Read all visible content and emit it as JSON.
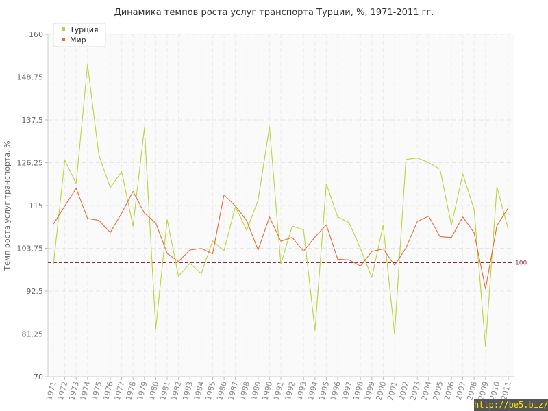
{
  "chart_data": {
    "type": "line",
    "title": "Динамика темпов роста услуг транспорта Турции, %, 1971-2011 гг.",
    "ylabel": "Темп роста услуг транспорта, %",
    "xlabel": "",
    "ylim": [
      70,
      160
    ],
    "yticks": [
      "70",
      "81.25",
      "92.5",
      "103.75",
      "115",
      "126.25",
      "137.5",
      "148.75",
      "160"
    ],
    "ytick_values": [
      70,
      81.25,
      92.5,
      103.75,
      115,
      126.25,
      137.5,
      148.75,
      160
    ],
    "x": [
      "1971",
      "1972",
      "1973",
      "1974",
      "1975",
      "1976",
      "1977",
      "1978",
      "1979",
      "1980",
      "1981",
      "1982",
      "1983",
      "1984",
      "1985",
      "1986",
      "1987",
      "1988",
      "1989",
      "1990",
      "1991",
      "1992",
      "1993",
      "1994",
      "1995",
      "1996",
      "1997",
      "1998",
      "1999",
      "2000",
      "2001",
      "2002",
      "2003",
      "2004",
      "2005",
      "2006",
      "2007",
      "2008",
      "2009",
      "2010",
      "2011"
    ],
    "series": [
      {
        "name": "Турция",
        "color": "#b9d33c",
        "values": [
          99.5,
          126.9,
          120.8,
          152.0,
          128.2,
          119.7,
          123.9,
          109.6,
          135.4,
          82.6,
          111.3,
          96.4,
          99.8,
          97.1,
          105.7,
          103.1,
          114.7,
          108.5,
          116.4,
          135.7,
          99.6,
          109.6,
          108.6,
          82.2,
          120.7,
          112.0,
          110.5,
          103.7,
          96.1,
          109.8,
          81.2,
          127.1,
          127.5,
          126.3,
          124.5,
          109.8,
          123.3,
          113.9,
          77.9,
          119.9,
          108.7
        ]
      },
      {
        "name": "Мир",
        "color": "#e06c3a",
        "values": [
          110.1,
          114.9,
          119.5,
          111.6,
          111.1,
          107.9,
          113.0,
          118.7,
          113.0,
          110.4,
          102.4,
          100.3,
          103.3,
          103.7,
          102.3,
          117.8,
          114.9,
          111.0,
          103.3,
          112.0,
          105.6,
          106.6,
          103.0,
          106.7,
          109.9,
          100.9,
          100.7,
          99.1,
          102.9,
          103.6,
          99.3,
          103.8,
          110.8,
          112.2,
          106.8,
          106.6,
          112.0,
          107.8,
          93.1,
          109.7,
          114.4
        ]
      }
    ],
    "reference_line": {
      "value": 100,
      "label": "100",
      "color": "#8b2a3c"
    },
    "grid": true,
    "legend_position": "top-left"
  },
  "watermark": "http://be5.biz/"
}
